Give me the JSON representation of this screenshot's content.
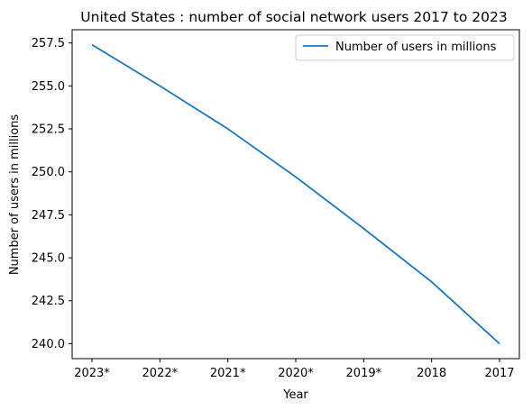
{
  "chart_data": {
    "type": "line",
    "title": "United States : number of social network users 2017 to 2023",
    "xlabel": "Year",
    "ylabel": "Number of users in millions",
    "categories": [
      "2023*",
      "2022*",
      "2021*",
      "2020*",
      "2019*",
      "2018",
      "2017"
    ],
    "series": [
      {
        "name": "Number of users in millions",
        "color": "#1f77b4",
        "values": [
          257.4,
          255.0,
          252.5,
          249.7,
          246.7,
          243.6,
          240.0
        ]
      }
    ],
    "yticks": [
      "240.0",
      "242.5",
      "245.0",
      "247.5",
      "250.0",
      "252.5",
      "255.0",
      "257.5"
    ],
    "ylim": [
      239.13,
      258.27
    ],
    "grid": false,
    "legend_position": "upper right"
  }
}
